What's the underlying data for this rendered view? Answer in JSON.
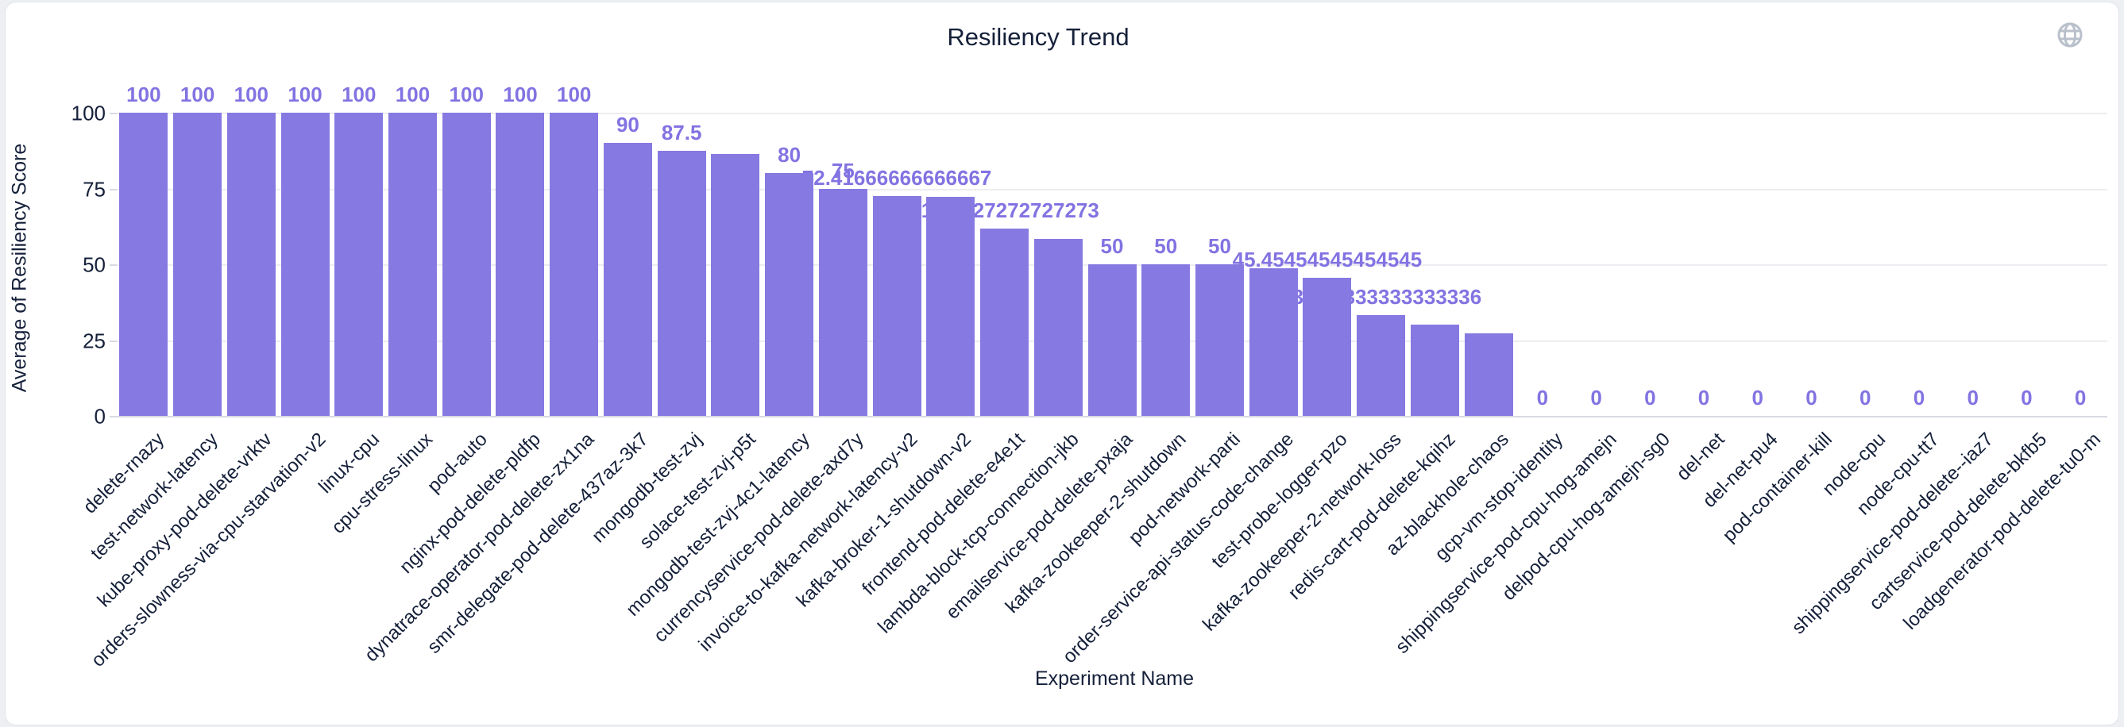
{
  "page": {
    "background_color": "#edeff2",
    "card_background": "#ffffff",
    "card_border_color": "#e0e4e9"
  },
  "header": {
    "title": "Resiliency Trend",
    "globe_icon": "globe-icon",
    "globe_color": "#b9c0cb"
  },
  "chart_data": {
    "type": "bar",
    "title": "Resiliency Trend",
    "xlabel": "Experiment Name",
    "ylabel": "Average of Resiliency Score",
    "ylim": [
      0,
      100
    ],
    "y_ticks": [
      0,
      25,
      50,
      75,
      100
    ],
    "grid": "horizontal-only",
    "legend": "none",
    "bar_color": "#8779e2",
    "value_label_color": "#8273e2",
    "axis_text_color": "#15203a",
    "grid_color": "#ededf1",
    "baseline_color": "#d7dae1",
    "categories": [
      "delete-rnazy",
      "test-network-latency",
      "kube-proxy-pod-delete-vrktv",
      "orders-slowness-via-cpu-starvation-v2",
      "linux-cpu",
      "cpu-stress-linux",
      "pod-auto",
      "nginx-pod-delete-pldfp",
      "dynatrace-operator-pod-delete-zx1na",
      "smr-delegate-pod-delete-437az-3k7",
      "mongodb-test-zvj",
      "solace-test-zvj-p5t",
      "mongodb-test-zvj-4c1-latency",
      "currencyservice-pod-delete-axd7y",
      "invoice-to-kafka-network-latency-v2",
      "kafka-broker-1-shutdown-v2",
      "frontend-pod-delete-e4e1t",
      "lambda-block-tcp-connection-jkb",
      "emailservice-pod-delete-pxaja",
      "kafka-zookeeper-2-shutdown",
      "pod-network-parti",
      "order-service-api-status-code-change",
      "test-probe-logger-pzo",
      "kafka-zookeeper-2-network-loss",
      "redis-cart-pod-delete-kqihz",
      "az-blackhole-chaos",
      "gcp-vm-stop-identity",
      "shippingservice-pod-cpu-hog-amejn",
      "delpod-cpu-hog-amejn-sg0",
      "del-net",
      "del-net-pu4",
      "pod-container-kill",
      "node-cpu",
      "node-cpu-tt7",
      "shippingservice-pod-delete--iaz7",
      "cartservice-pod-delete-bkfb5",
      "loadgenerator-pod-delete-tu0-m"
    ],
    "values": [
      100,
      100,
      100,
      100,
      100,
      100,
      100,
      100,
      100,
      90,
      87.5,
      86.4,
      80,
      75,
      72.41666666666667,
      72.25,
      61.72727272727273,
      58.33,
      50,
      50,
      50,
      48.7,
      45.45454545454545,
      33.333333333333336,
      30,
      27.27,
      0,
      0,
      0,
      0,
      0,
      0,
      0,
      0,
      0,
      0,
      0
    ],
    "value_labels": [
      "100",
      "100",
      "100",
      "100",
      "100",
      "100",
      "100",
      "100",
      "100",
      "90",
      "87.5",
      "",
      "80",
      "75",
      "72.41666666666667",
      "",
      "61.72727272727273",
      "",
      "50",
      "50",
      "50",
      "",
      "45.45454545454545",
      "33.333333333333336",
      "",
      "",
      "0",
      "0",
      "0",
      "0",
      "0",
      "0",
      "0",
      "0",
      "0",
      "0",
      "0"
    ]
  }
}
